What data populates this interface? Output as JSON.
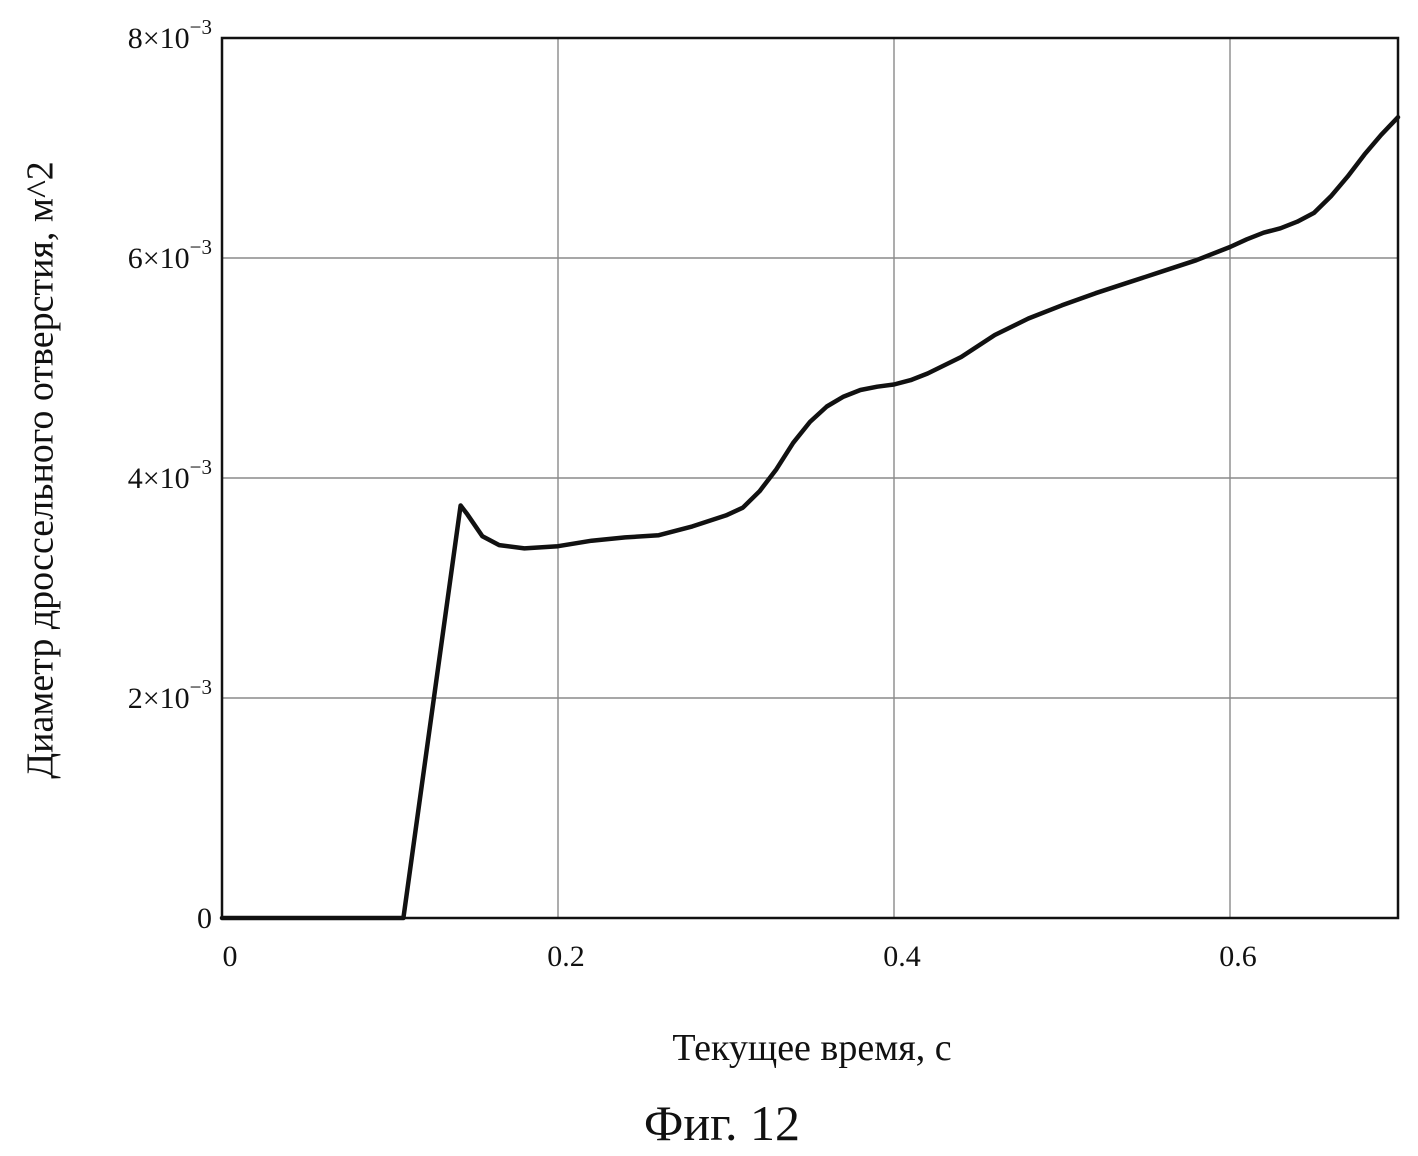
{
  "chart_data": {
    "type": "line",
    "xlabel": "Текущее время, с",
    "ylabel": "Диаметр дроссельного отверстия, м^2",
    "xlim": [
      0,
      0.7
    ],
    "ylim": [
      0,
      0.008
    ],
    "grid": true,
    "legend": "none",
    "x_ticks": [
      {
        "value": 0,
        "label": "0"
      },
      {
        "value": 0.2,
        "label": "0.2"
      },
      {
        "value": 0.4,
        "label": "0.4"
      },
      {
        "value": 0.6,
        "label": "0.6"
      }
    ],
    "y_ticks": [
      {
        "value": 0,
        "mantissa": "0",
        "exponent": ""
      },
      {
        "value": 0.002,
        "mantissa": "2×10",
        "exponent": "−3"
      },
      {
        "value": 0.004,
        "mantissa": "4×10",
        "exponent": "−3"
      },
      {
        "value": 0.006,
        "mantissa": "6×10",
        "exponent": "−3"
      },
      {
        "value": 0.008,
        "mantissa": "8×10",
        "exponent": "−3"
      }
    ],
    "series": [
      {
        "x": [
          0,
          0.108,
          0.142,
          0.146,
          0.155,
          0.165,
          0.18,
          0.2,
          0.22,
          0.24,
          0.26,
          0.28,
          0.3,
          0.31,
          0.32,
          0.33,
          0.34,
          0.35,
          0.36,
          0.37,
          0.38,
          0.39,
          0.4,
          0.41,
          0.42,
          0.44,
          0.46,
          0.48,
          0.5,
          0.52,
          0.54,
          0.56,
          0.58,
          0.6,
          0.61,
          0.62,
          0.63,
          0.64,
          0.65,
          0.66,
          0.67,
          0.68,
          0.69,
          0.7
        ],
        "y": [
          0,
          0,
          0.00375,
          0.00367,
          0.00347,
          0.00339,
          0.00336,
          0.00338,
          0.00343,
          0.00346,
          0.00348,
          0.00356,
          0.00366,
          0.00373,
          0.00388,
          0.00408,
          0.00432,
          0.00451,
          0.00465,
          0.00474,
          0.0048,
          0.00483,
          0.00485,
          0.00489,
          0.00495,
          0.0051,
          0.0053,
          0.00545,
          0.00557,
          0.00568,
          0.00578,
          0.00588,
          0.00598,
          0.0061,
          0.00617,
          0.00623,
          0.00627,
          0.00633,
          0.00641,
          0.00656,
          0.00674,
          0.00694,
          0.00712,
          0.00728
        ],
        "color": "#111111"
      }
    ]
  },
  "figure": {
    "caption": "Фиг. 12"
  }
}
